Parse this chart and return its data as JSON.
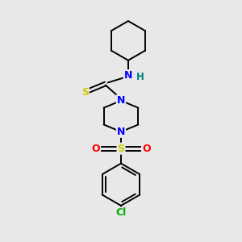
{
  "background_color": "#e8e8e8",
  "atom_colors": {
    "C": "#000000",
    "N": "#0000ff",
    "S_thio": "#cccc00",
    "S_sulfonyl": "#cccc00",
    "O": "#ff0000",
    "Cl": "#00aa00",
    "H": "#008080"
  },
  "figsize": [
    3.0,
    3.0
  ],
  "dpi": 100
}
